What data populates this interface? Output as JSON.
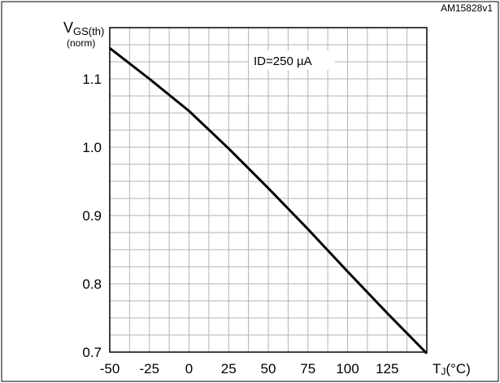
{
  "figure_id": "AM15828v1",
  "chart_data": {
    "type": "line",
    "title": "",
    "ylabel_main": "V",
    "ylabel_sub": "GS(th)",
    "ylabel_norm": "(norm)",
    "xlabel_main": "T",
    "xlabel_sub": "J",
    "xlabel_unit": "(°C)",
    "annotation": "ID=250 µA",
    "xlim": [
      -50,
      150
    ],
    "ylim": [
      0.7,
      1.175
    ],
    "x_ticks": [
      -50,
      -25,
      0,
      25,
      50,
      75,
      100,
      125
    ],
    "x_tick_labels": [
      "-50",
      "-25",
      "0",
      "25",
      "50",
      "75",
      "100",
      "125"
    ],
    "y_ticks": [
      0.7,
      0.8,
      0.9,
      1.0,
      1.1
    ],
    "y_tick_labels": [
      "0.7",
      "0.8",
      "0.9",
      "1.0",
      "1.1"
    ],
    "grid": true,
    "series": [
      {
        "x": [
          -50,
          -25,
          0,
          25,
          50,
          75,
          100,
          125,
          150
        ],
        "values": [
          1.145,
          1.1,
          1.053,
          0.998,
          0.94,
          0.88,
          0.818,
          0.757,
          0.698
        ]
      }
    ]
  }
}
